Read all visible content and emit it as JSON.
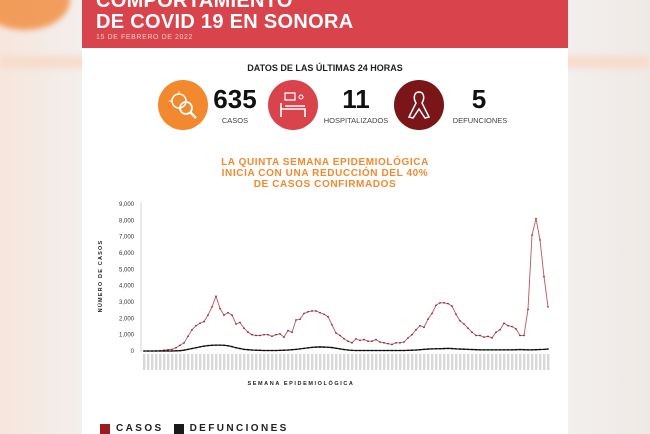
{
  "header": {
    "title_line1": "COMPORTAMIENTO",
    "title_line2": "DE COVID 19 EN SONORA",
    "date": "15 DE FEBRERO DE 2022"
  },
  "summary": {
    "title": "DATOS DE LAS ÚLTIMAS 24 HORAS",
    "stats": [
      {
        "value": "635",
        "label": "CASOS",
        "icon": "virus-magnifier-icon",
        "color": "#f2892e"
      },
      {
        "value": "11",
        "label": "HOSPITALIZADOS",
        "icon": "hospital-bed-icon",
        "color": "#d9444c"
      },
      {
        "value": "5",
        "label": "DEFUNCIONES",
        "icon": "ribbon-icon",
        "color": "#7a1518"
      }
    ]
  },
  "chart_data": {
    "type": "line",
    "title": "LA QUINTA SEMANA EPIDEMIOLÓGICA INICIA CON UNA REDUCCIÓN DEL 40% DE CASOS CONFIRMADOS",
    "title_lines": [
      "LA QUINTA SEMANA EPIDEMIOLÓGICA",
      "INICIA CON UNA REDUCCIÓN DEL 40%",
      "DE CASOS CONFIRMADOS"
    ],
    "xlabel": "SEMANA EPIDEMIOLÓGICA",
    "ylabel": "NÚMERO DE CASOS",
    "ylim": [
      0,
      9000
    ],
    "yticks": [
      "0",
      "1,000",
      "2,000",
      "3,000",
      "4,000",
      "5,000",
      "6,000",
      "7,000",
      "8,000",
      "9,000"
    ],
    "legend_position": "bottom-left",
    "series": [
      {
        "name": "CASOS",
        "color": "#c0535c",
        "values": [
          0,
          0,
          0,
          10,
          20,
          50,
          80,
          100,
          200,
          350,
          500,
          900,
          1300,
          1550,
          1700,
          1800,
          2200,
          2700,
          3350,
          2600,
          2200,
          2350,
          2200,
          1650,
          1750,
          1400,
          1150,
          1000,
          950,
          950,
          1000,
          1000,
          900,
          1000,
          1050,
          850,
          1250,
          1150,
          1900,
          1950,
          2300,
          2400,
          2450,
          2450,
          2350,
          2250,
          2100,
          1600,
          1100,
          950,
          750,
          600,
          500,
          750,
          650,
          700,
          600,
          600,
          700,
          550,
          500,
          450,
          400,
          500,
          500,
          550,
          800,
          1000,
          1300,
          1550,
          1450,
          1950,
          2300,
          2800,
          2950,
          2950,
          2900,
          2750,
          2250,
          1850,
          1650,
          1400,
          1150,
          950,
          950,
          850,
          900,
          800,
          1150,
          1300,
          1700,
          1550,
          1500,
          1350,
          950,
          950,
          2550,
          7100,
          8100,
          6800,
          4550,
          2700
        ]
      },
      {
        "name": "DEFUNCIONES",
        "color": "#1a1a1a",
        "values": [
          0,
          0,
          0,
          0,
          0,
          0,
          0,
          0,
          10,
          20,
          50,
          100,
          150,
          200,
          250,
          300,
          330,
          350,
          360,
          360,
          350,
          320,
          270,
          200,
          150,
          100,
          80,
          60,
          50,
          40,
          30,
          30,
          30,
          30,
          40,
          50,
          60,
          80,
          100,
          130,
          160,
          190,
          220,
          240,
          250,
          240,
          230,
          210,
          170,
          130,
          90,
          60,
          40,
          30,
          30,
          30,
          30,
          30,
          30,
          30,
          30,
          30,
          30,
          30,
          30,
          30,
          40,
          50,
          60,
          80,
          100,
          120,
          130,
          140,
          140,
          150,
          160,
          150,
          130,
          120,
          110,
          100,
          90,
          80,
          70,
          70,
          70,
          70,
          70,
          70,
          70,
          70,
          70,
          80,
          90,
          80,
          70,
          70,
          80,
          90,
          100,
          120
        ]
      }
    ]
  }
}
